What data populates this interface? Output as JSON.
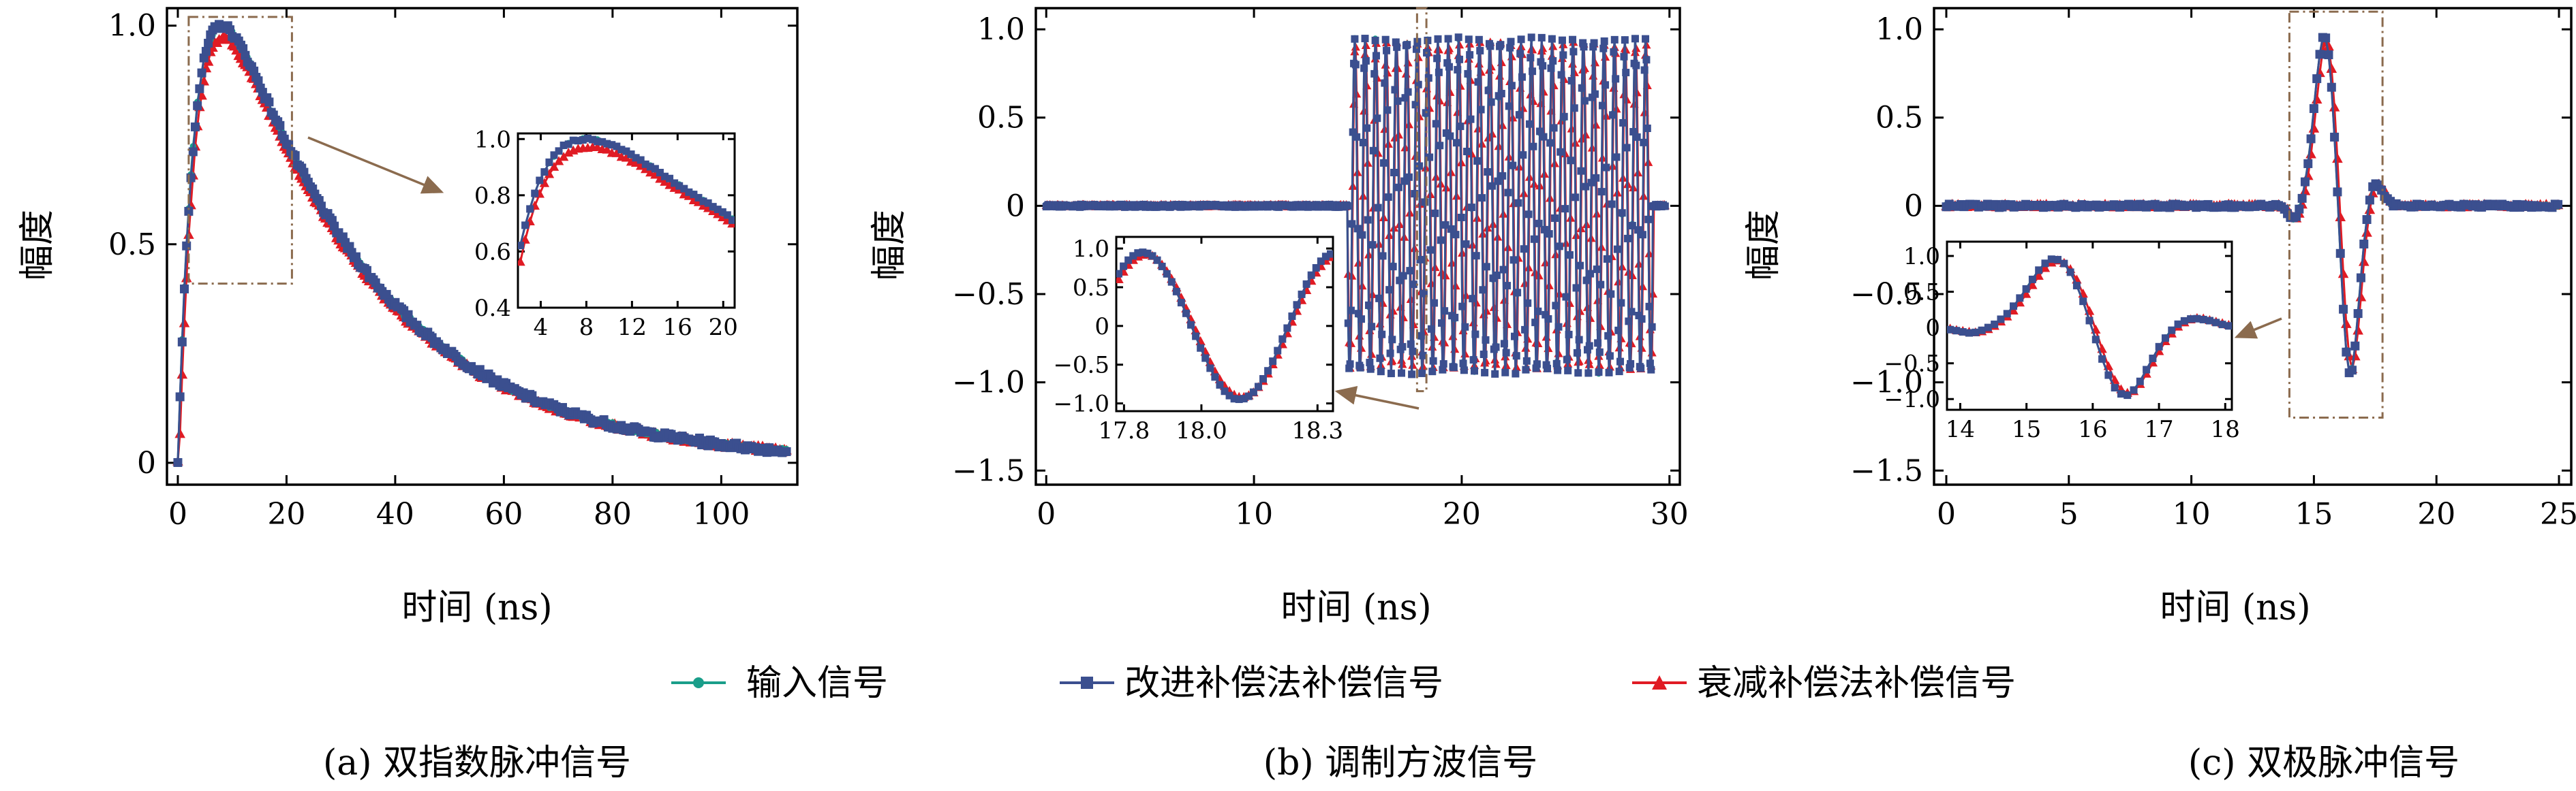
{
  "colors": {
    "input": "#1a9e8a",
    "improved": "#3b4f8f",
    "attenuation": "#e01b24",
    "annotation": "#8b6b4e"
  },
  "legend": {
    "items": [
      {
        "label": "输入信号",
        "color": "#1a9e8a",
        "marker": "circle"
      },
      {
        "label": "改进补偿法补偿信号",
        "color": "#3b4f8f",
        "marker": "square"
      },
      {
        "label": "衰减补偿法补偿信号",
        "color": "#e01b24",
        "marker": "triangle"
      }
    ]
  },
  "chart_data": [
    {
      "type": "line",
      "caption": "(a) 双指数脉冲信号",
      "xlabel": "时间 (ns)",
      "ylabel": "幅度",
      "xlim": [
        -2,
        114
      ],
      "ylim": [
        -0.05,
        1.04
      ],
      "xticks": [
        0,
        20,
        40,
        60,
        80,
        100
      ],
      "yticks": [
        0,
        0.5,
        1.0
      ],
      "xtick_labels": [
        "0",
        "20",
        "40",
        "60",
        "80",
        "100"
      ],
      "ytick_labels": [
        "0",
        "0.5",
        "1.0"
      ],
      "signal": "double_exponential",
      "x_range": [
        0,
        112
      ],
      "series_names": [
        "输入信号",
        "改进补偿法补偿信号",
        "衰减补偿法补偿信号"
      ],
      "zoom_window": {
        "x": [
          2,
          21
        ],
        "y": [
          0.41,
          1.02
        ]
      },
      "inset": {
        "xlim": [
          2,
          21
        ],
        "ylim": [
          0.4,
          1.02
        ],
        "xticks": [
          4,
          8,
          12,
          16,
          20
        ],
        "yticks": [
          0.4,
          0.6,
          0.8,
          1.0
        ],
        "xtick_labels": [
          "4",
          "8",
          "12",
          "16",
          "20"
        ],
        "ytick_labels": [
          "0.4",
          "0.6",
          "0.8",
          "1.0"
        ]
      }
    },
    {
      "type": "line",
      "caption": "(b) 调制方波信号",
      "xlabel": "时间 (ns)",
      "ylabel": "幅度",
      "xlim": [
        -0.5,
        30.5
      ],
      "ylim": [
        -1.58,
        1.12
      ],
      "xticks": [
        0,
        10,
        20,
        30
      ],
      "yticks": [
        -1.5,
        -1.0,
        -0.5,
        0,
        0.5,
        1.0
      ],
      "xtick_labels": [
        "0",
        "10",
        "20",
        "30"
      ],
      "ytick_labels": [
        "−1.5",
        "−1.0",
        "−0.5",
        "0",
        "0.5",
        "1.0"
      ],
      "signal": "modulated_square",
      "x_range": [
        0,
        29.8
      ],
      "burst_range": [
        14.5,
        29.2
      ],
      "series_names": [
        "输入信号",
        "改进补偿法补偿信号",
        "衰减补偿法补偿信号"
      ],
      "zoom_window": {
        "x": [
          17.85,
          18.3
        ],
        "y": [
          -1.05,
          1.12
        ]
      },
      "inset": {
        "xlim": [
          17.78,
          18.34
        ],
        "ylim": [
          -1.1,
          1.15
        ],
        "xticks": [
          17.8,
          18.0,
          18.3
        ],
        "yticks": [
          -1.0,
          -0.5,
          0,
          0.5,
          1.0
        ],
        "xtick_labels": [
          "17.8",
          "18.0",
          "18.3"
        ],
        "ytick_labels": [
          "−1.0",
          "−0.5",
          "0",
          "0.5",
          "1.0"
        ]
      }
    },
    {
      "type": "line",
      "caption": "(c) 双极脉冲信号",
      "xlabel": "时间 (ns)",
      "ylabel": "幅度",
      "xlim": [
        -0.5,
        25.5
      ],
      "ylim": [
        -1.58,
        1.12
      ],
      "xticks": [
        0,
        5,
        10,
        15,
        20,
        25
      ],
      "yticks": [
        -1.5,
        -1.0,
        -0.5,
        0,
        0.5,
        1.0
      ],
      "xtick_labels": [
        "0",
        "5",
        "10",
        "15",
        "20",
        "25"
      ],
      "ytick_labels": [
        "−1.5",
        "−1.0",
        "−0.5",
        "0",
        "0.5",
        "1.0"
      ],
      "signal": "bipolar_pulse",
      "x_range": [
        0,
        25
      ],
      "series_names": [
        "输入信号",
        "改进补偿法补偿信号",
        "衰减补偿法补偿信号"
      ],
      "zoom_window": {
        "x": [
          14,
          17.8
        ],
        "y": [
          -1.2,
          1.1
        ]
      },
      "inset": {
        "xlim": [
          13.8,
          18.1
        ],
        "ylim": [
          -1.15,
          1.2
        ],
        "xticks": [
          14,
          15,
          16,
          17,
          18
        ],
        "yticks": [
          -1.0,
          -0.5,
          0,
          0.5,
          1.0
        ],
        "xtick_labels": [
          "14",
          "15",
          "16",
          "17",
          "18"
        ],
        "ytick_labels": [
          "−1.0",
          "−0.5",
          "0",
          "0.5",
          "1.0"
        ]
      }
    }
  ]
}
